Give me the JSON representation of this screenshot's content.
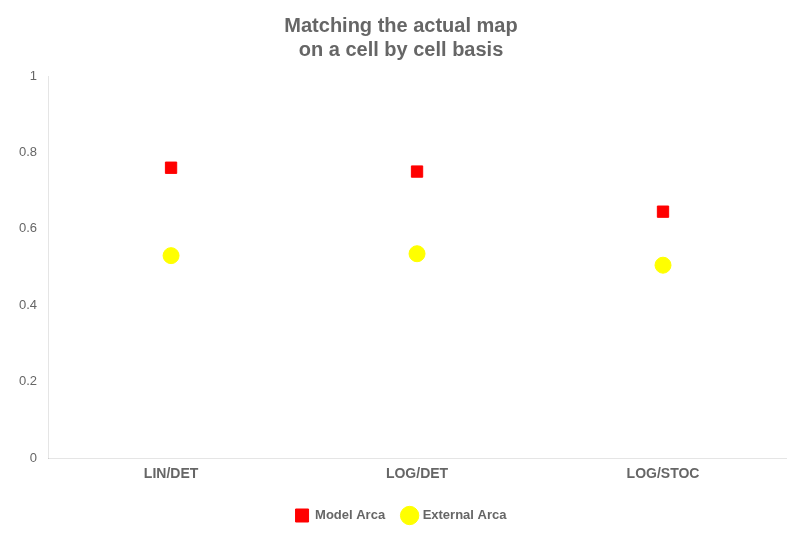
{
  "chart_data": {
    "type": "scatter",
    "title": [
      "Matching the actual map",
      "on a cell by cell basis"
    ],
    "categories": [
      "LIN/DET",
      "LOG/DET",
      "LOG/STOC"
    ],
    "series": [
      {
        "name": "Model Arca",
        "color": "#ff0000",
        "marker": "square",
        "values": [
          0.76,
          0.75,
          0.645
        ]
      },
      {
        "name": "External Arca",
        "color": "#ffff00",
        "marker": "circle",
        "values": [
          0.53,
          0.535,
          0.505
        ]
      }
    ],
    "ylim": [
      0,
      1
    ],
    "yticks": [
      0,
      0.2,
      0.4,
      0.6,
      0.8,
      1
    ],
    "grid": false,
    "legend": "bottom"
  }
}
